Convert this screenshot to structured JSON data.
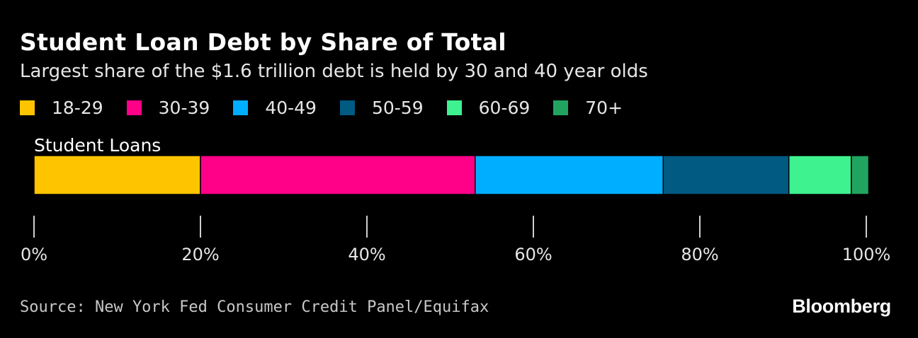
{
  "chart_data": {
    "type": "bar",
    "orientation": "horizontal-stacked",
    "title": "Student Loan Debt by Share of Total",
    "subtitle": "Largest share of the $1.6 trillion debt is held by 30 and 40 year olds",
    "categories": [
      "Student Loans"
    ],
    "series": [
      {
        "name": "18-29",
        "values": [
          20
        ],
        "color": "#FFC400"
      },
      {
        "name": "30-39",
        "values": [
          33
        ],
        "color": "#FF0088"
      },
      {
        "name": "40-49",
        "values": [
          22.6
        ],
        "color": "#00AEFF"
      },
      {
        "name": "50-59",
        "values": [
          15.1
        ],
        "color": "#005A82"
      },
      {
        "name": "60-69",
        "values": [
          7.5
        ],
        "color": "#3EF28F"
      },
      {
        "name": "70+",
        "values": [
          2.1
        ],
        "color": "#22A461"
      }
    ],
    "xlim": [
      0,
      100
    ],
    "ticks": [
      0,
      20,
      40,
      60,
      80,
      100
    ],
    "tick_labels": [
      "0%",
      "20%",
      "40%",
      "60%",
      "80%",
      "100%"
    ],
    "legend": "top",
    "grid": false,
    "source": "Source: New York Fed Consumer Credit Panel/Equifax",
    "brand": "Bloomberg"
  }
}
